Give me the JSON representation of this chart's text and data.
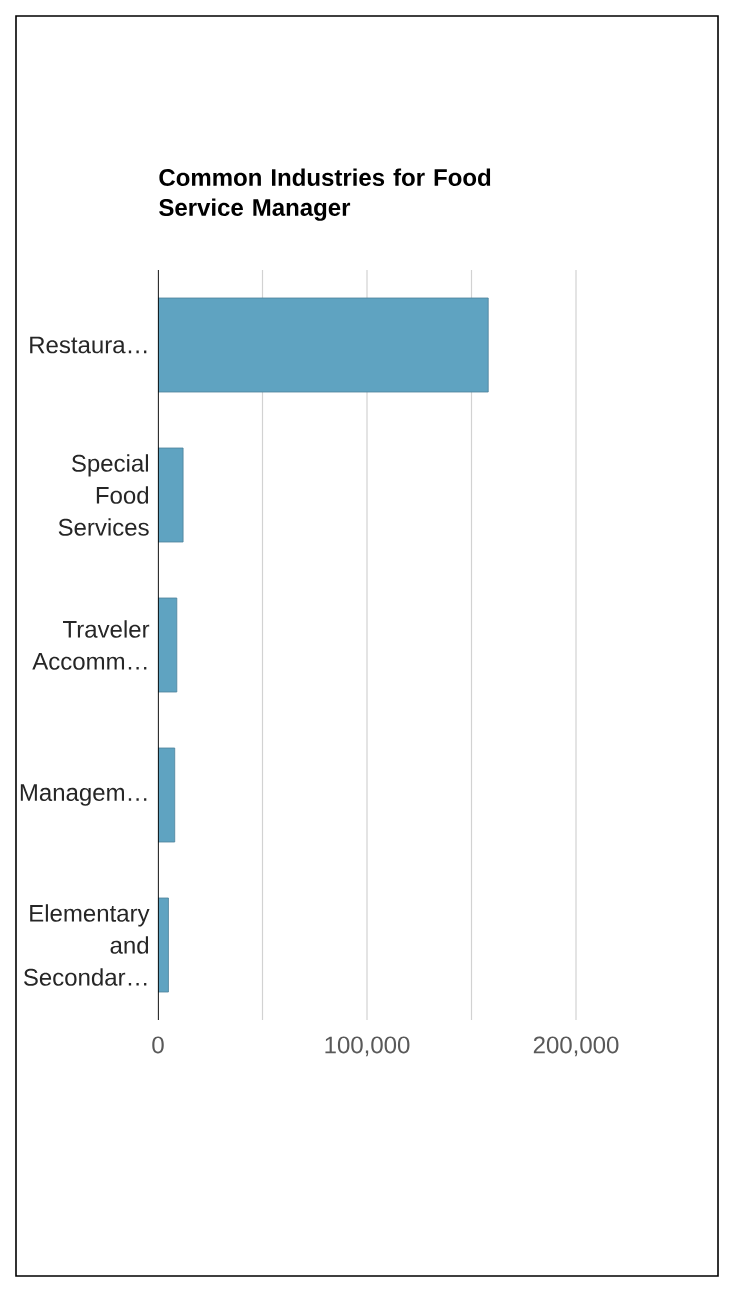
{
  "chart_data": {
    "type": "bar",
    "orientation": "horizontal",
    "title": "Common Industries for Food Service Manager",
    "categories": [
      "Restaura…",
      "Special Food Services",
      "Traveler Accomm…",
      "Managem…",
      "Elementary and Secondar…"
    ],
    "values": [
      158000,
      12000,
      9000,
      8000,
      5000
    ],
    "color": "#5fa3c1",
    "xlim": [
      0,
      200000
    ],
    "xticks": [
      0,
      {
        "value": 50000,
        "label": null
      },
      {
        "value": 100000,
        "label": "100,000"
      },
      {
        "value": 150000,
        "label": null
      },
      {
        "value": 200000,
        "label": "200,000"
      }
    ],
    "grid": "x"
  }
}
